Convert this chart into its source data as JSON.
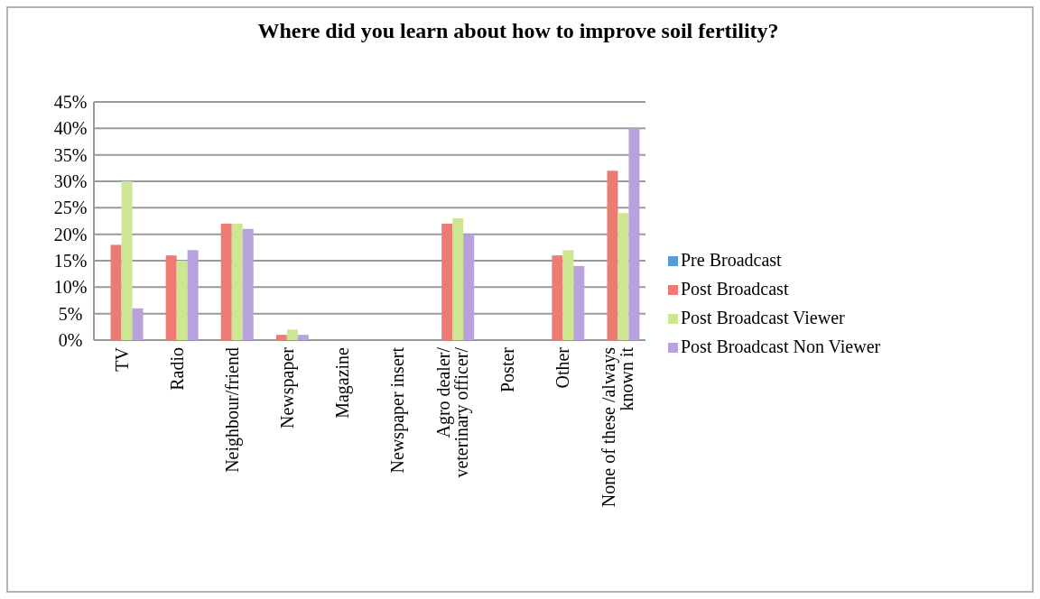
{
  "chart_data": {
    "type": "bar",
    "title": "Where did you learn about how to improve soil fertility?",
    "categories": [
      "TV",
      "Radio",
      "Neighbour/friend",
      "Newspaper",
      "Magazine",
      "Newspaper insert",
      "Agro dealer/ veterinary officer/",
      "Poster",
      "Other",
      "None of these /always known it"
    ],
    "series": [
      {
        "name": "Pre Broadcast",
        "color": "#5b9bd5",
        "values": [
          0,
          0,
          0,
          0,
          0,
          0,
          0,
          0,
          0,
          0
        ]
      },
      {
        "name": "Post Broadcast",
        "color": "#ee7b73",
        "values": [
          18,
          16,
          22,
          1,
          0,
          0,
          22,
          0,
          16,
          32
        ]
      },
      {
        "name": "Post Broadcast Viewer",
        "color": "#cde691",
        "values": [
          30,
          15,
          22,
          2,
          0,
          0,
          23,
          0,
          17,
          24
        ]
      },
      {
        "name": "Post Broadcast Non Viewer",
        "color": "#b8a2de",
        "values": [
          6,
          17,
          21,
          1,
          0,
          0,
          20,
          0,
          14,
          40
        ]
      }
    ],
    "ylim": [
      0,
      45
    ],
    "yticks": [
      {
        "value": 0,
        "label": "0%"
      },
      {
        "value": 5,
        "label": "5%"
      },
      {
        "value": 10,
        "label": "10%"
      },
      {
        "value": 15,
        "label": "15%"
      },
      {
        "value": 20,
        "label": "20%"
      },
      {
        "value": 25,
        "label": "25%"
      },
      {
        "value": 30,
        "label": "30%"
      },
      {
        "value": 35,
        "label": "35%"
      },
      {
        "value": 40,
        "label": "40%"
      },
      {
        "value": 45,
        "label": "45%"
      }
    ],
    "grid": "y",
    "legend": "right"
  }
}
